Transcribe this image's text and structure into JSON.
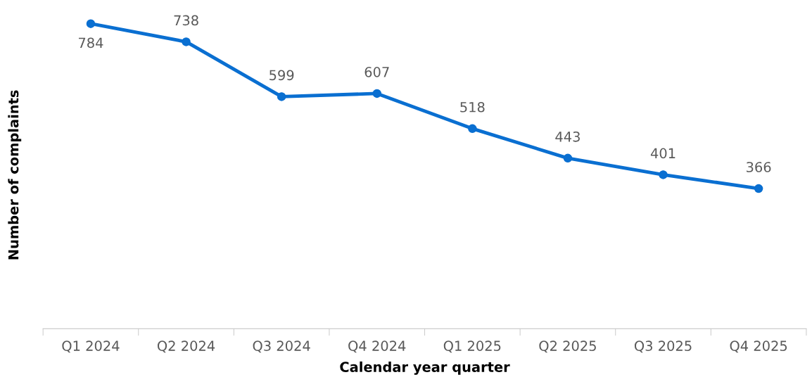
{
  "chart_data": {
    "type": "line",
    "xlabel": "Calendar year quarter",
    "ylabel": "Number of complaints",
    "categories": [
      "Q1 2024",
      "Q2 2024",
      "Q3 2024",
      "Q4 2024",
      "Q1 2025",
      "Q2 2025",
      "Q3 2025",
      "Q4 2025"
    ],
    "series": [
      {
        "color": "#0a6fd1",
        "values": [
          784,
          738,
          599,
          607,
          518,
          443,
          401,
          366
        ]
      }
    ],
    "tick_labels": "x",
    "data_labels": true,
    "grid": false,
    "legend": false,
    "marker": "circle",
    "line_style": "solid"
  }
}
